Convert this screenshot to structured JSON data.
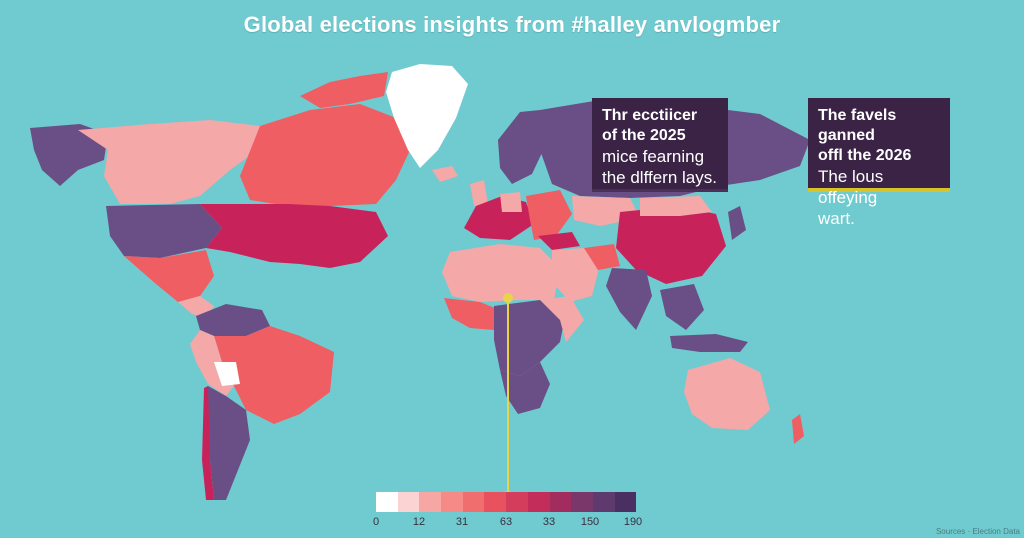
{
  "title": "Global elections insights from #halley anvlogmber",
  "cards": [
    {
      "heading_line1": "Thr ecctiicer",
      "heading_line2": "of the 2025",
      "body_line1": "mice fearning",
      "body_line2": "the dlffern lays."
    },
    {
      "heading_line1": "The favels ganned",
      "heading_line2": "offl the 2026",
      "body_line1": "The lous offeying",
      "body_line2": "wart."
    }
  ],
  "legend": {
    "colors": [
      "#ffffff",
      "#fbd3d3",
      "#f6a7a4",
      "#f58a86",
      "#f06e6e",
      "#e8525f",
      "#d43d5c",
      "#c32d5a",
      "#a22c5e",
      "#7a3769",
      "#5f3a6e",
      "#4a2f62"
    ],
    "ticks": [
      "0",
      "12",
      "31",
      "63",
      "33",
      "150",
      "190"
    ]
  },
  "colors": {
    "ocean": "#6fcbd0",
    "card_bg": "#3b2346",
    "accent_yellow": "#d8c42a",
    "white": "#ffffff",
    "pink": "#f4a8a8",
    "coral": "#ee5e62",
    "crimson": "#c7235a",
    "purple": "#6a4f86"
  },
  "credit": "Sources · Election Data"
}
